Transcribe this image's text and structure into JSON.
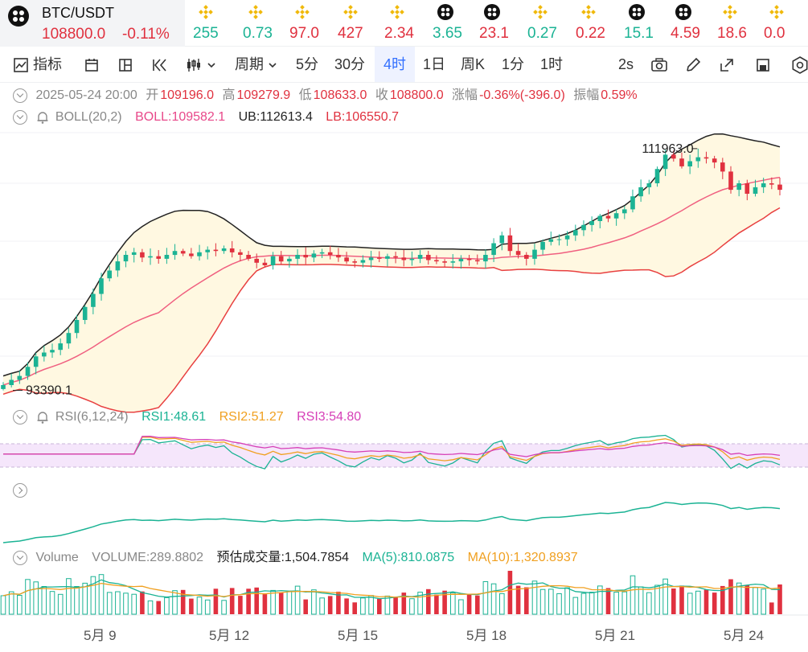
{
  "ticker": {
    "pair": "BTC/USDT",
    "price": "108800.0",
    "change": "-0.11%",
    "items": [
      {
        "icon": "binance-coin-icon",
        "value": "255",
        "dir": "up"
      },
      {
        "icon": "binance-coin-icon",
        "value": "0.73",
        "dir": "up"
      },
      {
        "icon": "binance-coin-icon",
        "value": "97.0",
        "dir": "dn"
      },
      {
        "icon": "binance-coin-icon",
        "value": "427",
        "dir": "dn"
      },
      {
        "icon": "binance-coin-icon",
        "value": "2.34",
        "dir": "dn"
      },
      {
        "icon": "dark-coin-icon",
        "value": "3.65",
        "dir": "up"
      },
      {
        "icon": "dark-coin-icon",
        "value": "23.1",
        "dir": "dn"
      },
      {
        "icon": "binance-coin-icon",
        "value": "0.27",
        "dir": "up"
      },
      {
        "icon": "binance-coin-icon",
        "value": "0.22",
        "dir": "dn"
      },
      {
        "icon": "dark-coin-icon",
        "value": "15.1",
        "dir": "up"
      },
      {
        "icon": "dark-coin-icon",
        "value": "4.59",
        "dir": "dn"
      },
      {
        "icon": "binance-coin-icon",
        "value": "18.6",
        "dir": "dn"
      },
      {
        "icon": "binance-coin-icon",
        "value": "0.0",
        "dir": "dn"
      }
    ]
  },
  "toolbar": {
    "indicators": "指标",
    "period": "周期",
    "intervals": [
      "5分",
      "30分",
      "4时",
      "1日",
      "周K",
      "1分",
      "1时"
    ],
    "selected_interval": "4时",
    "refresh": "2s"
  },
  "ohlc": {
    "date": "2025-05-24 20:00",
    "open_label": "开",
    "open": "109196.0",
    "high_label": "高",
    "high": "109279.9",
    "low_label": "低",
    "low": "108633.0",
    "close_label": "收",
    "close": "108800.0",
    "change_label": "涨幅",
    "change": "-0.36%(-396.0)",
    "amp_label": "振幅",
    "amp": "0.59%"
  },
  "boll": {
    "label": "BOLL(20,2)",
    "mid": "BOLL:109582.1",
    "ub": "UB:112613.4",
    "lb": "LB:106550.7"
  },
  "rsi": {
    "label": "RSI(6,12,24)",
    "rsi1": "RSI1:48.61",
    "rsi2": "RSI2:51.27",
    "rsi3": "RSI3:54.80"
  },
  "volume": {
    "label": "Volume",
    "vol": "VOLUME:289.8802",
    "est": "预估成交量:1,504.7854",
    "ma5": "MA(5):810.0875",
    "ma10": "MA(10):1,320.8937"
  },
  "annotations": {
    "high": "111963.0",
    "low": "93390.1"
  },
  "x_axis_labels": [
    "5月 9",
    "5月 12",
    "5月 15",
    "5月 18",
    "5月 21",
    "5月 24"
  ],
  "colors": {
    "up": "#1bb394",
    "down": "#e0313f",
    "boll_mid": "#f06080",
    "boll_band": "#e84040",
    "boll_upper": "#222222",
    "rsi1": "#1bb394",
    "rsi2": "#f0a020",
    "rsi3": "#d63fb7",
    "accent": "#3370ff"
  },
  "chart_data": [
    {
      "type": "candlestick",
      "title": "",
      "series": [
        {
          "name": "BTC/USDT 4h"
        }
      ],
      "close_estimate": [
        93800,
        94200,
        94500,
        95200,
        96000,
        96300,
        96500,
        97000,
        97800,
        98800,
        99800,
        100800,
        102000,
        102600,
        103300,
        103800,
        104000,
        103600,
        103700,
        103500,
        103800,
        104100,
        103900,
        103700,
        104000,
        104200,
        104100,
        104300,
        104000,
        103800,
        103500,
        103200,
        103000,
        103700,
        103300,
        103500,
        103800,
        103600,
        103900,
        104000,
        103800,
        103600,
        103300,
        103200,
        103400,
        103600,
        103500,
        103700,
        103600,
        103400,
        103500,
        103800,
        103400,
        103300,
        103200,
        103300,
        103500,
        103400,
        103300,
        103800,
        104700,
        105300,
        104100,
        103800,
        103500,
        104200,
        104800,
        105000,
        105000,
        105300,
        105700,
        106100,
        106400,
        106800,
        106600,
        107000,
        107300,
        108300,
        109000,
        109300,
        110400,
        111500,
        111200,
        110600,
        111000,
        111300,
        111200,
        110900,
        110200,
        108800,
        109300,
        108500,
        109000,
        109300,
        109200,
        108800
      ],
      "annotations": [
        "111963.0",
        "93390.1"
      ]
    },
    {
      "type": "line",
      "title": "",
      "series": [
        {
          "name": "RSI1",
          "last": 48.61
        },
        {
          "name": "RSI2",
          "last": 51.27
        },
        {
          "name": "RSI3",
          "last": 54.8
        }
      ]
    },
    {
      "type": "bar",
      "title": "",
      "series": [
        {
          "name": "VOLUME",
          "last": 289.8802
        },
        {
          "name": "MA(5)",
          "last": 810.0875
        },
        {
          "name": "MA(10)",
          "last": 1320.8937
        }
      ]
    }
  ]
}
